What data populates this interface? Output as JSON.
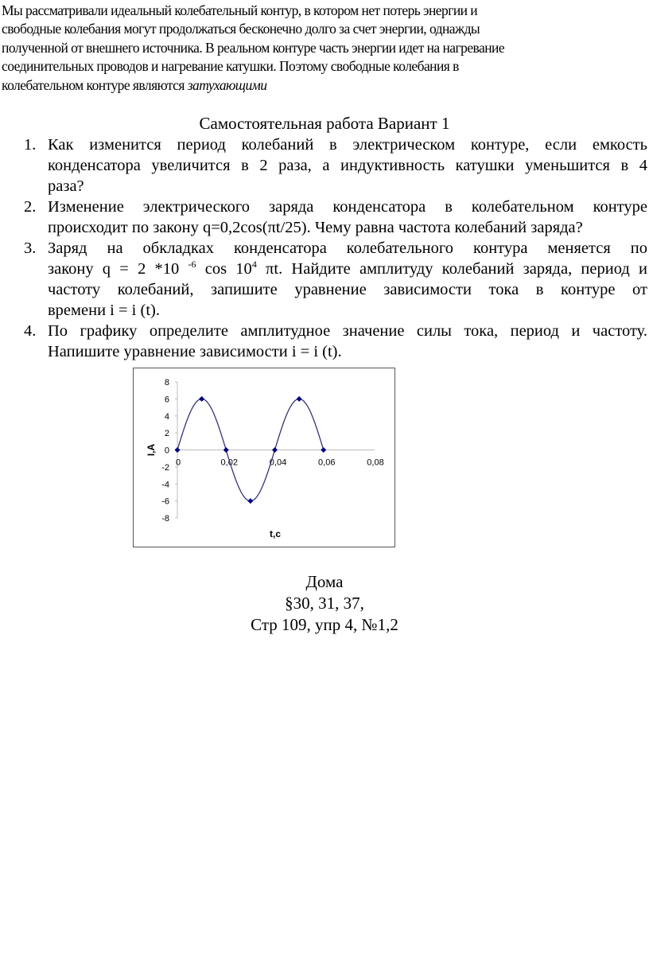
{
  "intro": {
    "lines": [
      "Мы рассматривали идеальный колебательный контур, в котором нет потерь энергии и",
      "свободные колебания могут продолжаться бесконечно долго за счет энергии, однажды",
      "полученной от внешнего источника. В реальном контуре часть энергии идет на нагревание",
      "соединительных проводов и нагревание катушки. Поэтому свободные колебания в"
    ],
    "last_line": "колебательном контуре являются ",
    "emphasis": "затухающими"
  },
  "title": "Самостоятельная работа  Вариант 1",
  "tasks": [
    {
      "num": "1.",
      "lines": [
        "Как изменится период колебаний в электрическом контуре, если емкость",
        "конденсатора увеличится в 2 раза, а индуктивность катушки уменьшится в 4",
        "раза?"
      ]
    },
    {
      "num": "2.",
      "lines": [
        "Изменение электрического заряда конденсатора  в колебательном контуре",
        "происходит по закону q=0,2cos(πt/25). Чему равна частота колебаний заряда?"
      ]
    },
    {
      "num": "3.",
      "lines": [
        "Заряд на обкладках конденсатора колебательного контура меняется по"
      ],
      "formula": {
        "a": "закону q = 2 *10 ",
        "sup1": "-6",
        "b": " cos 10",
        "sup2": "4",
        "c": " πt. Найдите амплитуду колебаний заряда, период и"
      },
      "lines2": [
        "частоту колебаний, запишите уравнение зависимости тока в контуре от",
        "времени i = i (t)."
      ]
    },
    {
      "num": "4.",
      "lines": [
        "По графику определите амплитудное значение силы тока, период и частоту.",
        "Напишите уравнение зависимости i = i (t)."
      ]
    }
  ],
  "chart_data": {
    "type": "line",
    "x": [
      0,
      0.01,
      0.02,
      0.03,
      0.04,
      0.05,
      0.06
    ],
    "values": [
      0,
      6,
      0,
      -6,
      0,
      6,
      0
    ],
    "xlabel": "t,c",
    "ylabel": "I,A",
    "xlim": [
      0,
      0.08
    ],
    "ylim": [
      -8,
      8
    ],
    "xticks": [
      "0",
      "0,02",
      "0,04",
      "0,06",
      "0,08"
    ],
    "yticks": [
      "8",
      "6",
      "4",
      "2",
      "0",
      "-2",
      "-4",
      "-6",
      "-8"
    ],
    "xtick_values": [
      0,
      0.02,
      0.04,
      0.06,
      0.08
    ],
    "ytick_values": [
      8,
      6,
      4,
      2,
      0,
      -2,
      -4,
      -6,
      -8
    ],
    "smooth": true,
    "grid": false,
    "line_color": "#33337a",
    "marker_color": "#000080"
  },
  "home": {
    "title": "Дома",
    "paragraphs": "§30, 31, 37,",
    "page": "Стр 109, упр 4, №1,2"
  }
}
